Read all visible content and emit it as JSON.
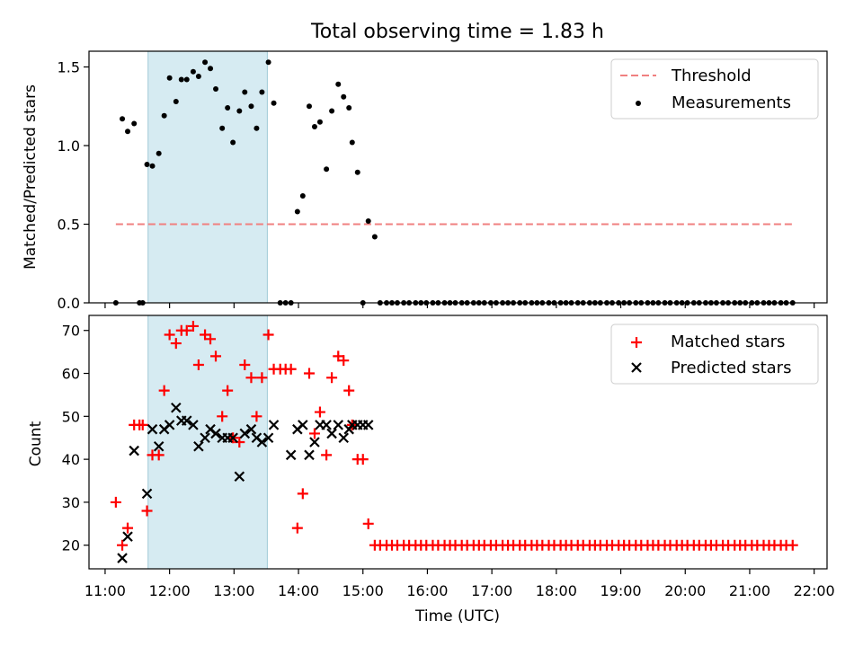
{
  "chart_data": {
    "type": "scatter",
    "title": "Total observing time = 1.83 h",
    "xlabel": "Time (UTC)",
    "x_ticks": [
      "11:00",
      "12:00",
      "13:00",
      "14:00",
      "15:00",
      "16:00",
      "17:00",
      "18:00",
      "19:00",
      "20:00",
      "21:00",
      "22:00"
    ],
    "x_range_hours": [
      10.75,
      22.2
    ],
    "shaded_interval": {
      "start": "11:40",
      "end": "13:31",
      "color": "#add8e6"
    },
    "top": {
      "ylabel": "Matched/Predicted stars",
      "ylim": [
        0,
        1.6
      ],
      "y_ticks": [
        "0.0",
        "0.5",
        "1.0",
        "1.5"
      ],
      "legend_position": "top-right",
      "threshold": {
        "name": "Threshold",
        "value": 0.5,
        "x_from": "11:10",
        "x_to": "21:40",
        "color": "#f08080"
      },
      "series": [
        {
          "name": "Measurements",
          "color": "#000000",
          "x": [
            "11:10",
            "11:16",
            "11:21",
            "11:27",
            "11:32",
            "11:35",
            "11:39",
            "11:44",
            "11:50",
            "11:55",
            "12:00",
            "12:06",
            "12:11",
            "12:16",
            "12:22",
            "12:27",
            "12:33",
            "12:38",
            "12:43",
            "12:49",
            "12:54",
            "12:59",
            "13:05",
            "13:10",
            "13:16",
            "13:21",
            "13:26",
            "13:32",
            "13:37",
            "13:43",
            "13:48",
            "13:53",
            "13:59",
            "14:04",
            "14:10",
            "14:15",
            "14:20",
            "14:26",
            "14:31",
            "14:37",
            "14:42",
            "14:47",
            "14:50",
            "14:55",
            "15:00",
            "15:05",
            "15:11",
            "15:16",
            "15:22",
            "15:27",
            "15:32",
            "15:38",
            "15:43",
            "15:49",
            "15:54",
            "15:59",
            "16:05",
            "16:10",
            "16:16",
            "16:21",
            "16:26",
            "16:32",
            "16:37",
            "16:43",
            "16:48",
            "16:53",
            "16:59",
            "17:04",
            "17:10",
            "17:15",
            "17:20",
            "17:26",
            "17:31",
            "17:37",
            "17:42",
            "17:47",
            "17:53",
            "17:58",
            "18:04",
            "18:09",
            "18:14",
            "18:20",
            "18:25",
            "18:31",
            "18:36",
            "18:41",
            "18:47",
            "18:52",
            "18:58",
            "19:03",
            "19:08",
            "19:14",
            "19:19",
            "19:25",
            "19:30",
            "19:35",
            "19:41",
            "19:46",
            "19:52",
            "19:57",
            "20:02",
            "20:08",
            "20:13",
            "20:19",
            "20:24",
            "20:29",
            "20:35",
            "20:40",
            "20:46",
            "20:51",
            "20:56",
            "21:02",
            "21:07",
            "21:13",
            "21:18",
            "21:23",
            "21:29",
            "21:34",
            "21:40"
          ],
          "y": [
            0.0,
            1.17,
            1.09,
            1.14,
            0.0,
            0.0,
            0.88,
            0.87,
            0.95,
            1.19,
            1.43,
            1.28,
            1.42,
            1.42,
            1.47,
            1.44,
            1.53,
            1.49,
            1.36,
            1.11,
            1.24,
            1.02,
            1.22,
            1.34,
            1.25,
            1.11,
            1.34,
            1.53,
            1.27,
            0.0,
            0.0,
            0.0,
            0.58,
            0.68,
            1.25,
            1.12,
            1.15,
            0.85,
            1.22,
            1.39,
            1.31,
            1.24,
            1.02,
            0.83,
            0.0,
            0.52,
            0.42,
            0.0,
            0.0,
            0.0,
            0.0,
            0.0,
            0.0,
            0.0,
            0.0,
            0.0,
            0.0,
            0.0,
            0.0,
            0.0,
            0.0,
            0.0,
            0.0,
            0.0,
            0.0,
            0.0,
            0.0,
            0.0,
            0.0,
            0.0,
            0.0,
            0.0,
            0.0,
            0.0,
            0.0,
            0.0,
            0.0,
            0.0,
            0.0,
            0.0,
            0.0,
            0.0,
            0.0,
            0.0,
            0.0,
            0.0,
            0.0,
            0.0,
            0.0,
            0.0,
            0.0,
            0.0,
            0.0,
            0.0,
            0.0,
            0.0,
            0.0,
            0.0,
            0.0,
            0.0,
            0.0,
            0.0,
            0.0,
            0.0,
            0.0,
            0.0,
            0.0,
            0.0,
            0.0,
            0.0,
            0.0,
            0.0,
            0.0,
            0.0,
            0.0,
            0.0,
            0.0,
            0.0,
            0.0
          ]
        }
      ]
    },
    "bottom": {
      "ylabel": "Count",
      "ylim": [
        14.5,
        73.5
      ],
      "y_ticks": [
        "20",
        "30",
        "40",
        "50",
        "60",
        "70"
      ],
      "legend_position": "top-right",
      "series": [
        {
          "name": "Matched stars",
          "marker": "+",
          "color": "#ff0000",
          "x": [
            "11:10",
            "11:16",
            "11:21",
            "11:27",
            "11:32",
            "11:35",
            "11:39",
            "11:44",
            "11:50",
            "11:55",
            "12:00",
            "12:06",
            "12:11",
            "12:16",
            "12:22",
            "12:27",
            "12:33",
            "12:38",
            "12:43",
            "12:49",
            "12:54",
            "12:59",
            "13:05",
            "13:10",
            "13:16",
            "13:21",
            "13:26",
            "13:32",
            "13:37",
            "13:43",
            "13:48",
            "13:53",
            "13:59",
            "14:04",
            "14:10",
            "14:15",
            "14:20",
            "14:26",
            "14:31",
            "14:37",
            "14:42",
            "14:47",
            "14:50",
            "14:55",
            "15:00",
            "15:05",
            "15:11",
            "15:16",
            "15:22",
            "15:27",
            "15:32",
            "15:38",
            "15:43",
            "15:49",
            "15:54",
            "15:59",
            "16:05",
            "16:10",
            "16:16",
            "16:21",
            "16:26",
            "16:32",
            "16:37",
            "16:43",
            "16:48",
            "16:53",
            "16:59",
            "17:04",
            "17:10",
            "17:15",
            "17:20",
            "17:26",
            "17:31",
            "17:37",
            "17:42",
            "17:47",
            "17:53",
            "17:58",
            "18:04",
            "18:09",
            "18:14",
            "18:20",
            "18:25",
            "18:31",
            "18:36",
            "18:41",
            "18:47",
            "18:52",
            "18:58",
            "19:03",
            "19:08",
            "19:14",
            "19:19",
            "19:25",
            "19:30",
            "19:35",
            "19:41",
            "19:46",
            "19:52",
            "19:57",
            "20:02",
            "20:08",
            "20:13",
            "20:19",
            "20:24",
            "20:29",
            "20:35",
            "20:40",
            "20:46",
            "20:51",
            "20:56",
            "21:02",
            "21:07",
            "21:13",
            "21:18",
            "21:23",
            "21:29",
            "21:34",
            "21:40"
          ],
          "y": [
            30,
            20,
            24,
            48,
            48,
            48,
            28,
            41,
            41,
            56,
            69,
            67,
            70,
            70,
            71,
            62,
            69,
            68,
            64,
            50,
            56,
            45,
            44,
            62,
            59,
            50,
            59,
            69,
            61,
            61,
            61,
            61,
            24,
            32,
            60,
            46,
            51,
            41,
            59,
            64,
            63,
            56,
            48,
            40,
            40,
            25,
            20,
            20,
            20,
            20,
            20,
            20,
            20,
            20,
            20,
            20,
            20,
            20,
            20,
            20,
            20,
            20,
            20,
            20,
            20,
            20,
            20,
            20,
            20,
            20,
            20,
            20,
            20,
            20,
            20,
            20,
            20,
            20,
            20,
            20,
            20,
            20,
            20,
            20,
            20,
            20,
            20,
            20,
            20,
            20,
            20,
            20,
            20,
            20,
            20,
            20,
            20,
            20,
            20,
            20,
            20,
            20,
            20,
            20,
            20,
            20,
            20,
            20,
            20,
            20,
            20,
            20,
            20,
            20,
            20,
            20,
            20,
            20,
            20
          ]
        },
        {
          "name": "Predicted stars",
          "marker": "x",
          "color": "#000000",
          "x": [
            "11:16",
            "11:21",
            "11:27",
            "11:39",
            "11:44",
            "11:50",
            "11:55",
            "12:00",
            "12:06",
            "12:11",
            "12:16",
            "12:22",
            "12:27",
            "12:33",
            "12:38",
            "12:43",
            "12:49",
            "12:54",
            "12:59",
            "13:05",
            "13:10",
            "13:16",
            "13:21",
            "13:26",
            "13:32",
            "13:37",
            "13:53",
            "13:59",
            "14:04",
            "14:10",
            "14:15",
            "14:20",
            "14:26",
            "14:31",
            "14:37",
            "14:42",
            "14:47",
            "14:50",
            "14:55",
            "15:00",
            "15:05"
          ],
          "y": [
            17,
            22,
            42,
            32,
            47,
            43,
            47,
            48,
            52,
            49,
            49,
            48,
            43,
            45,
            47,
            46,
            45,
            45,
            45,
            36,
            46,
            47,
            45,
            44,
            45,
            48,
            41,
            47,
            48,
            41,
            44,
            48,
            48,
            46,
            48,
            45,
            47,
            48,
            48,
            48,
            48
          ]
        }
      ]
    }
  }
}
